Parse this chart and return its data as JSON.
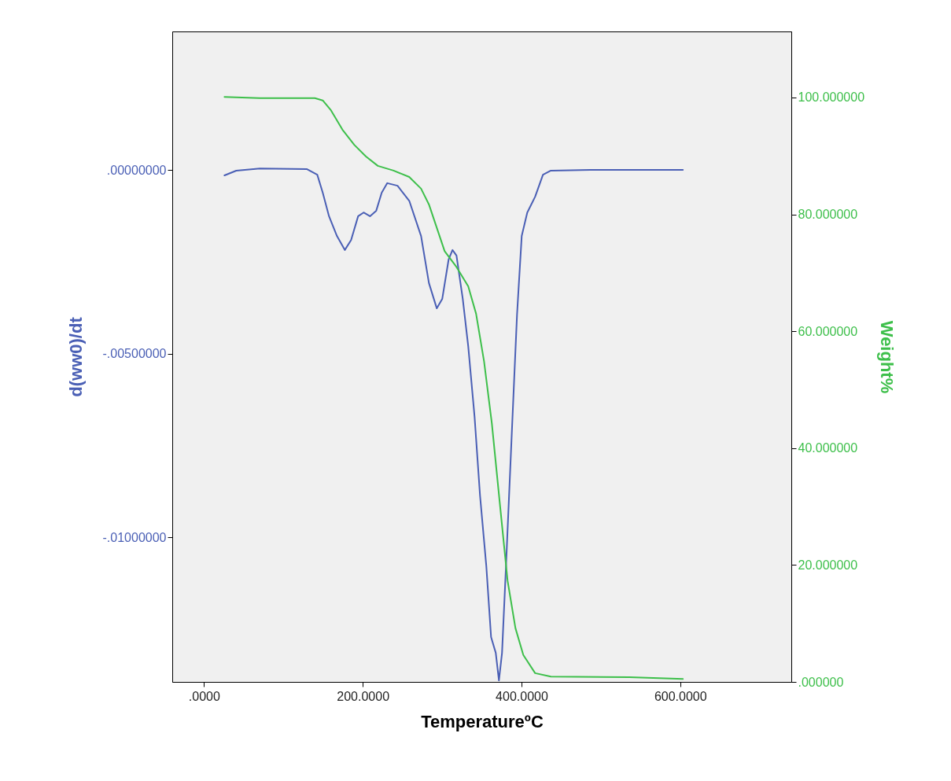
{
  "chart_data": {
    "type": "line",
    "xlabel": "TemperatureºC",
    "ylabel": "d(ww0)/dt",
    "y2label": "Weight%",
    "xlim": [
      -40,
      740
    ],
    "xticks": [
      {
        "value": 0,
        "label": ".0000"
      },
      {
        "value": 200,
        "label": "200.0000"
      },
      {
        "value": 400,
        "label": "400.0000"
      },
      {
        "value": 600,
        "label": "600.0000"
      }
    ],
    "ylim": [
      -0.01394,
      0.00377
    ],
    "yticks": [
      {
        "value": 0,
        "label": ".00000000"
      },
      {
        "value": -0.005,
        "label": "-.00500000"
      },
      {
        "value": -0.01,
        "label": "-.01000000"
      }
    ],
    "y2lim": [
      0,
      111.3
    ],
    "y2ticks": [
      {
        "value": 0,
        "label": ".000000"
      },
      {
        "value": 20,
        "label": "20.000000"
      },
      {
        "value": 40,
        "label": "40.000000"
      },
      {
        "value": 60,
        "label": "60.000000"
      },
      {
        "value": 80,
        "label": "80.000000"
      },
      {
        "value": 100,
        "label": "100.000000"
      }
    ],
    "grid": false,
    "marker": "none",
    "line_style": "solid",
    "series": [
      {
        "color": "#4a5fb5",
        "x": [
          25.8,
          40.6,
          70.4,
          129.8,
          142.7,
          149.6,
          157.5,
          167.5,
          177.4,
          185.3,
          194.2,
          201.1,
          209.1,
          217.0,
          223.9,
          230.9,
          243.8,
          258.6,
          273.5,
          283.4,
          293.3,
          300.2,
          308.2,
          313.1,
          318.1,
          326.0,
          332.9,
          340.9,
          347.8,
          355.7,
          361.7,
          367.6,
          371.6,
          375.5,
          380.5,
          387.4,
          394.4,
          400.3,
          407.3,
          417.2,
          427.1,
          437.0,
          486.5,
          603.4
        ],
        "values": [
          -0.00015,
          -2e-05,
          4e-05,
          2e-05,
          -0.00013,
          -0.00062,
          -0.00126,
          -0.0018,
          -0.00218,
          -0.00191,
          -0.00126,
          -0.00116,
          -0.00126,
          -0.00111,
          -0.00062,
          -0.00036,
          -0.00043,
          -0.00084,
          -0.0018,
          -0.00308,
          -0.00377,
          -0.00351,
          -0.00244,
          -0.00218,
          -0.00233,
          -0.00351,
          -0.0048,
          -0.00672,
          -0.00887,
          -0.01079,
          -0.01272,
          -0.01315,
          -0.0139,
          -0.01315,
          -0.01079,
          -0.00737,
          -0.00394,
          -0.0018,
          -0.00116,
          -0.00073,
          -0.00013,
          -2e-05,
          0,
          0
        ]
      },
      {
        "color": "#3dbf4a",
        "axis": "y2",
        "x": [
          25.8,
          70.4,
          139.7,
          149.6,
          159.5,
          174.4,
          189.3,
          204.1,
          219.0,
          238.8,
          258.6,
          273.5,
          283.4,
          293.3,
          303.2,
          318.1,
          332.9,
          342.8,
          352.8,
          362.7,
          372.6,
          382.5,
          392.4,
          402.3,
          417.2,
          437.0,
          536.1,
          603.4
        ],
        "values": [
          100.1,
          99.9,
          99.9,
          99.5,
          97.9,
          94.5,
          91.9,
          89.9,
          88.3,
          87.5,
          86.4,
          84.4,
          81.7,
          77.7,
          73.7,
          71.0,
          67.7,
          63.0,
          54.9,
          44.2,
          30.7,
          17.3,
          9.2,
          4.6,
          1.5,
          0.9,
          0.8,
          0.5
        ]
      }
    ]
  }
}
